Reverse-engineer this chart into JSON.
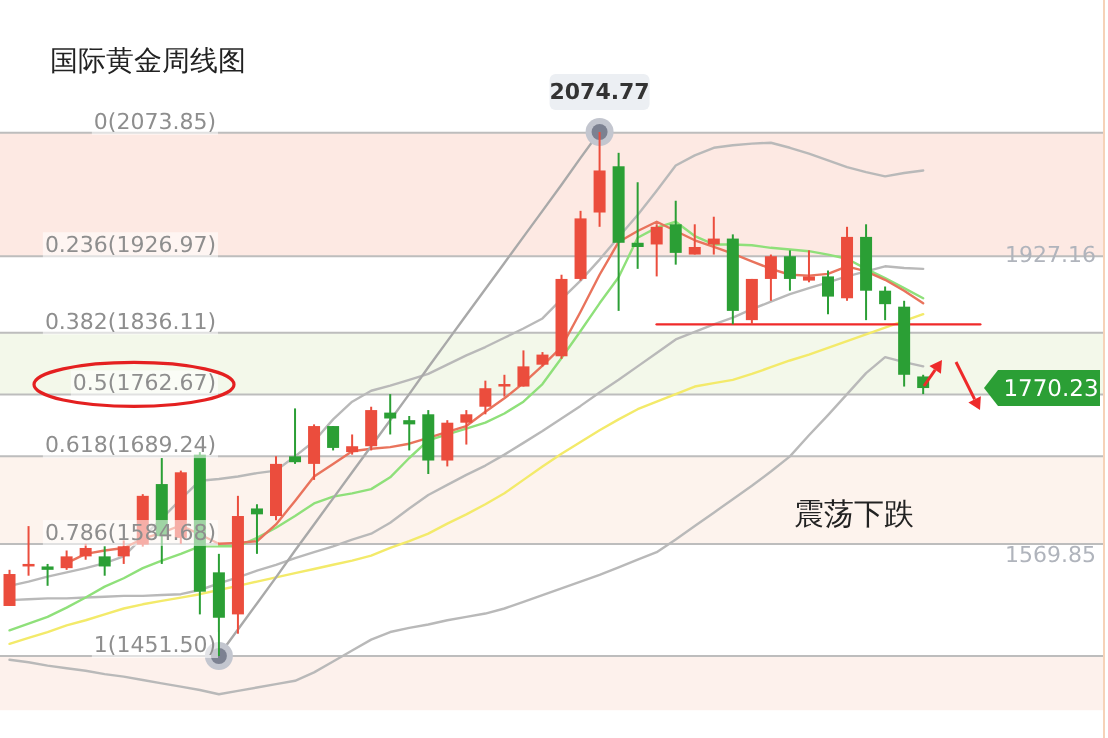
{
  "chart_data": {
    "type": "candlestick",
    "title": "国际黄金周线图",
    "categories": [
      null,
      null,
      null,
      null,
      null,
      null,
      null,
      null,
      null,
      null,
      null,
      null,
      null,
      null,
      null,
      null,
      null,
      null,
      null,
      null,
      null,
      null,
      null,
      null,
      null,
      null,
      null,
      null,
      null,
      null,
      null,
      null,
      null,
      null,
      null,
      null,
      null,
      null,
      null,
      null,
      null,
      null,
      null,
      null,
      null,
      null,
      null,
      null,
      null,
      null,
      null,
      null,
      null
    ],
    "ohlc": [
      [
        1511,
        1554,
        1511,
        1549
      ],
      [
        1558,
        1606,
        1547,
        1561
      ],
      [
        1558,
        1561,
        1535,
        1554
      ],
      [
        1556,
        1577,
        1554,
        1570
      ],
      [
        1570,
        1585,
        1566,
        1580
      ],
      [
        1570,
        1582,
        1547,
        1558
      ],
      [
        1570,
        1589,
        1561,
        1582
      ],
      [
        1584,
        1644,
        1582,
        1642
      ],
      [
        1656,
        1687,
        1561,
        1594
      ],
      [
        1592,
        1672,
        1585,
        1670
      ],
      [
        1691,
        1694,
        1501,
        1528
      ],
      [
        1551,
        1573,
        1451.5,
        1497
      ],
      [
        1501,
        1642,
        1478,
        1618
      ],
      [
        1627,
        1632,
        1573,
        1620
      ],
      [
        1618,
        1689,
        1613,
        1680
      ],
      [
        1689,
        1746,
        1680,
        1682
      ],
      [
        1680,
        1727,
        1661,
        1725
      ],
      [
        1725,
        1725,
        1696,
        1699
      ],
      [
        1694,
        1715,
        1691,
        1701
      ],
      [
        1701,
        1748,
        1696,
        1744
      ],
      [
        1741,
        1763,
        1715,
        1734
      ],
      [
        1732,
        1737,
        1696,
        1727
      ],
      [
        1739,
        1744,
        1668,
        1684
      ],
      [
        1684,
        1732,
        1677,
        1729
      ],
      [
        1729,
        1744,
        1703,
        1739
      ],
      [
        1748,
        1779,
        1739,
        1770
      ],
      [
        1772,
        1786,
        1760,
        1775
      ],
      [
        1772,
        1815,
        1772,
        1796
      ],
      [
        1798,
        1813,
        1796,
        1810
      ],
      [
        1808,
        1905,
        1805,
        1900
      ],
      [
        1900,
        1981,
        1898,
        1972
      ],
      [
        1979,
        2074.77,
        1962,
        2029
      ],
      [
        2034,
        2050,
        1862,
        1943
      ],
      [
        1943,
        2015,
        1912,
        1938
      ],
      [
        1941,
        1965,
        1903,
        1962
      ],
      [
        1965,
        1993,
        1917,
        1931
      ],
      [
        1929,
        1965,
        1929,
        1938
      ],
      [
        1941,
        1974,
        1929,
        1948
      ],
      [
        1948,
        1953,
        1846,
        1862
      ],
      [
        1851,
        1900,
        1846,
        1900
      ],
      [
        1900,
        1929,
        1874,
        1927
      ],
      [
        1927,
        1934,
        1886,
        1900
      ],
      [
        1898,
        1934,
        1896,
        1903
      ],
      [
        1903,
        1910,
        1858,
        1879
      ],
      [
        1877,
        1962,
        1874,
        1950
      ],
      [
        1950,
        1965,
        1851,
        1886
      ],
      [
        1886,
        1891,
        1851,
        1870
      ],
      [
        1867,
        1874,
        1772,
        1786
      ],
      [
        1784,
        1786,
        1763,
        1770.23
      ],
      null,
      null,
      null,
      null
    ],
    "colors": [
      "#eb4d3d",
      "#eb4d3d",
      "#2b9f35",
      "#eb4d3d",
      "#eb4d3d",
      "#2b9f35",
      "#eb4d3d",
      "#eb4d3d",
      "#2b9f35",
      "#eb4d3d",
      "#2b9f35",
      "#2b9f35",
      "#eb4d3d",
      "#2b9f35",
      "#eb4d3d",
      "#2b9f35",
      "#eb4d3d",
      "#2b9f35",
      "#eb4d3d",
      "#eb4d3d",
      "#2b9f35",
      "#2b9f35",
      "#2b9f35",
      "#eb4d3d",
      "#eb4d3d",
      "#eb4d3d",
      "#eb4d3d",
      "#eb4d3d",
      "#eb4d3d",
      "#eb4d3d",
      "#eb4d3d",
      "#eb4d3d",
      "#2b9f35",
      "#2b9f35",
      "#eb4d3d",
      "#2b9f35",
      "#eb4d3d",
      "#eb4d3d",
      "#2b9f35",
      "#eb4d3d",
      "#eb4d3d",
      "#2b9f35",
      "#eb4d3d",
      "#2b9f35",
      "#eb4d3d",
      "#2b9f35",
      "#2b9f35",
      "#2b9f35",
      "#2b9f35",
      null,
      null,
      null,
      null
    ],
    "series": [
      {
        "type": "line",
        "color": "#b9b9b9",
        "values": [
          1535,
          1540,
          1546,
          1551,
          1556,
          1562,
          1570,
          1593,
          1615,
          1638,
          1660,
          1662,
          1665,
          1669,
          1672,
          1689,
          1707,
          1733,
          1754,
          1767,
          1773,
          1780,
          1787,
          1798,
          1809,
          1819,
          1830,
          1841,
          1853,
          1876,
          1898,
          1923,
          1950,
          1976,
          2005,
          2035,
          2047,
          2056,
          2059,
          2061,
          2062,
          2056,
          2049,
          2041,
          2033,
          2027,
          2022,
          2026,
          2029,
          null,
          null,
          null,
          null
        ]
      },
      {
        "type": "line",
        "color": "#b9b9b9",
        "values": [
          1518,
          1519,
          1520,
          1520,
          1521,
          1522,
          1523,
          1523,
          1524,
          1525,
          1530,
          1538,
          1545,
          1553,
          1560,
          1568,
          1575,
          1582,
          1590,
          1597,
          1610,
          1627,
          1643,
          1655,
          1667,
          1678,
          1691,
          1705,
          1719,
          1734,
          1749,
          1765,
          1780,
          1796,
          1812,
          1828,
          1837,
          1846,
          1854,
          1864,
          1873,
          1882,
          1889,
          1896,
          1903,
          1909,
          1915,
          1913,
          1912,
          null,
          null,
          null,
          null
        ]
      },
      {
        "type": "line",
        "color": "#b9b9b9",
        "values": [
          1447,
          1444,
          1440,
          1437,
          1434,
          1430,
          1427,
          1423,
          1419,
          1415,
          1411,
          1406,
          1410,
          1414,
          1418,
          1422,
          1432,
          1445,
          1458,
          1471,
          1480,
          1485,
          1489,
          1494,
          1498,
          1502,
          1508,
          1516,
          1524,
          1532,
          1540,
          1548,
          1557,
          1566,
          1575,
          1590,
          1606,
          1622,
          1638,
          1654,
          1671,
          1689,
          1714,
          1738,
          1763,
          1788,
          1807,
          1801,
          1796,
          null,
          null,
          null,
          null
        ]
      },
      {
        "type": "line",
        "color": "#f3ea6a",
        "values": [
          1466,
          1473,
          1480,
          1488,
          1494,
          1501,
          1508,
          1513,
          1517,
          1521,
          1525,
          1530,
          1535,
          1540,
          1545,
          1550,
          1555,
          1560,
          1565,
          1571,
          1580,
          1588,
          1597,
          1609,
          1620,
          1632,
          1645,
          1661,
          1677,
          1692,
          1706,
          1720,
          1733,
          1745,
          1754,
          1763,
          1772,
          1776,
          1780,
          1787,
          1795,
          1803,
          1810,
          1818,
          1826,
          1834,
          1842,
          1850,
          1858,
          null,
          null,
          null,
          null
        ]
      },
      {
        "type": "line",
        "color": "#8fe07a",
        "values": [
          1482,
          1490,
          1498,
          1509,
          1521,
          1534,
          1544,
          1556,
          1565,
          1573,
          1582,
          1582,
          1582,
          1592,
          1604,
          1618,
          1633,
          1641,
          1645,
          1650,
          1664,
          1687,
          1708,
          1715,
          1722,
          1729,
          1740,
          1754,
          1775,
          1806,
          1838,
          1871,
          1902,
          1949,
          1961,
          1968,
          1951,
          1941,
          1941,
          1940,
          1937,
          1935,
          1933,
          1929,
          1924,
          1912,
          1901,
          1889,
          1877,
          null,
          null,
          null,
          null
        ]
      },
      {
        "type": "line",
        "color": "#e9735c",
        "values": [
          null,
          null,
          null,
          1562,
          1573,
          1577,
          1580,
          1591,
          1598,
          1607,
          1596,
          1585,
          1586,
          1588,
          1608,
          1636,
          1665,
          1680,
          1695,
          1698,
          1700,
          1704,
          1711,
          1718,
          1725,
          1742,
          1758,
          1776,
          1797,
          1819,
          1861,
          1905,
          1944,
          1957,
          1968,
          1957,
          1946,
          1938,
          1930,
          1921,
          1912,
          1905,
          1904,
          1906,
          1915,
          1909,
          1899,
          1886,
          1871,
          null,
          null,
          null,
          null
        ]
      },
      {
        "type": "line",
        "color": "#a9a9a9",
        "values": [
          null,
          null,
          null,
          null,
          null,
          null,
          null,
          null,
          null,
          null,
          null,
          1452,
          1483,
          1514,
          1545,
          1577,
          1608,
          1639,
          1670,
          1701,
          1732,
          1763,
          1795,
          1826,
          1857,
          1888,
          1919,
          1950,
          1981,
          2012,
          2044,
          2075,
          null,
          null,
          null,
          null,
          null,
          null,
          null,
          null,
          null,
          null,
          null,
          null,
          null,
          null,
          null,
          null,
          null,
          null,
          null,
          null,
          null
        ]
      },
      {
        "type": "line",
        "color": "#f02a2a",
        "values": [
          null,
          null,
          null,
          null,
          null,
          null,
          null,
          null,
          null,
          null,
          null,
          null,
          null,
          null,
          null,
          null,
          null,
          null,
          null,
          null,
          null,
          null,
          null,
          null,
          null,
          null,
          null,
          null,
          null,
          null,
          null,
          null,
          null,
          null,
          1846,
          1846,
          1846,
          1846,
          1846,
          1846,
          1846,
          1846,
          1846,
          1846,
          1846,
          1846,
          1846,
          1846,
          1846,
          1846,
          1846,
          1846,
          null
        ]
      }
    ],
    "ref_lines": [
      {
        "axis": "y",
        "value": 2073.85,
        "label": "0(2073.85)"
      },
      {
        "axis": "y",
        "value": 1926.97,
        "label": "0.236(1926.97)"
      },
      {
        "axis": "y",
        "value": 1836.11,
        "label": "0.382(1836.11)"
      },
      {
        "axis": "y",
        "value": 1762.67,
        "label": "0.5(1762.67)"
      },
      {
        "axis": "y",
        "value": 1689.24,
        "label": "0.618(1689.24)"
      },
      {
        "axis": "y",
        "value": 1584.68,
        "label": "0.786(1584.68)"
      },
      {
        "axis": "y",
        "value": 1451.5,
        "label": "1(1451.50)"
      }
    ],
    "bands": [
      {
        "axis": "y",
        "from": 2073.85,
        "to": 1926.97,
        "color": "#fde9e3"
      },
      {
        "axis": "y",
        "from": 1836.11,
        "to": 1762.67,
        "color": "#f3f8ea"
      },
      {
        "axis": "y",
        "from": 1689.24,
        "to": 1584.68,
        "color": "#fdf3ed"
      },
      {
        "axis": "y",
        "from": 1451.5,
        "to": 1387,
        "color": "#fdf1ec"
      }
    ],
    "annotations": [
      {
        "text": "2074.77",
        "y": 2074.77
      },
      {
        "text": "1770.23",
        "y": 1770.23
      },
      {
        "text": "1927.16",
        "y": 1927.16
      },
      "震荡下跌",
      "1569.85"
    ]
  }
}
